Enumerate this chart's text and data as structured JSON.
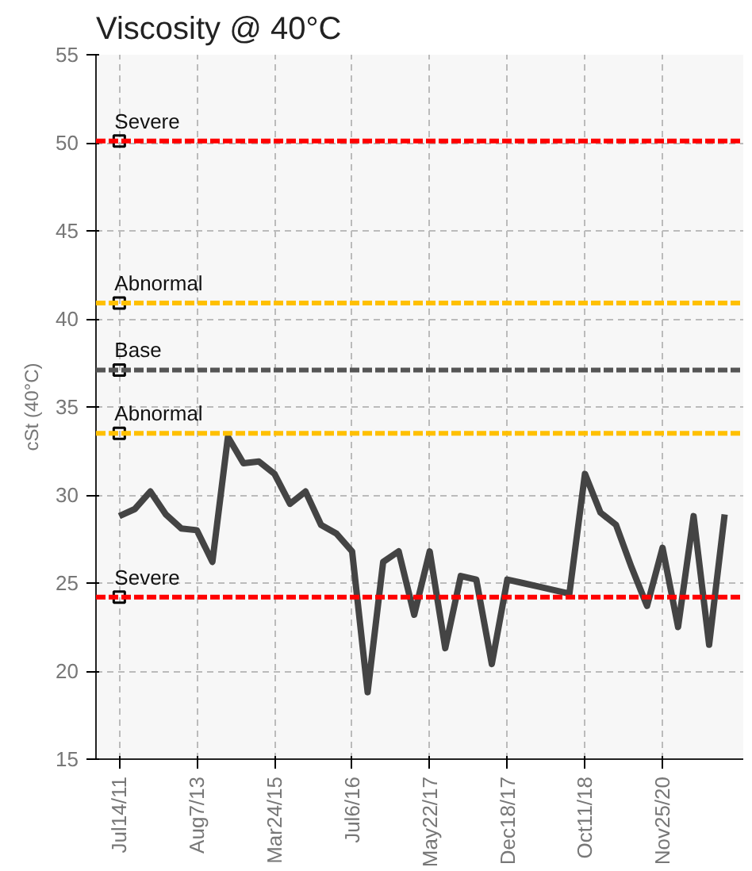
{
  "chart_data": {
    "type": "line",
    "title": "Viscosity @ 40°C",
    "ylabel": "cSt (40°C)",
    "categories": [
      "Jul14/11",
      null,
      null,
      null,
      null,
      "Aug7/13",
      null,
      null,
      null,
      null,
      "Mar24/15",
      null,
      null,
      null,
      null,
      "Jul6/16",
      null,
      null,
      null,
      null,
      "May22/17",
      null,
      null,
      null,
      null,
      "Dec18/17",
      null,
      null,
      null,
      null,
      "Oct11/18",
      null,
      null,
      null,
      null,
      "Nov25/20",
      null,
      null,
      null,
      null
    ],
    "series": [
      {
        "color": "#444444",
        "values": [
          28.8,
          29.2,
          30.2,
          28.9,
          28.1,
          28.0,
          26.2,
          33.3,
          31.8,
          31.9,
          31.2,
          29.5,
          30.2,
          28.3,
          27.8,
          26.8,
          18.8,
          26.2,
          26.8,
          23.2,
          26.8,
          21.3,
          25.4,
          25.2,
          20.4,
          25.2,
          25.0,
          24.8,
          24.6,
          24.4,
          31.2,
          29.0,
          28.3,
          25.9,
          23.7,
          27.0,
          22.5,
          28.8,
          21.5,
          28.9
        ]
      },
      {
        "type": "scatter",
        "marker": "square",
        "color": "#000000",
        "x": [
          "Jul14/11",
          "Jul14/11",
          "Jul14/11",
          "Jul14/11",
          "Jul14/11"
        ],
        "values": [
          50.1,
          40.9,
          37.1,
          33.5,
          24.2
        ]
      }
    ],
    "ylim": [
      15,
      55
    ],
    "yticks": [
      15,
      20,
      25,
      30,
      35,
      40,
      45,
      50,
      55
    ],
    "grid": true,
    "marker": "none",
    "line_style": "solid",
    "ref_lines": [
      {
        "axis": "y",
        "value": 50.1,
        "label": "Severe",
        "color": "#ff0000",
        "line_style": "dashed"
      },
      {
        "axis": "y",
        "value": 40.9,
        "label": "Abnormal",
        "color": "#ffc000",
        "line_style": "dashed"
      },
      {
        "axis": "y",
        "value": 37.1,
        "label": "Base",
        "color": "#555555",
        "line_style": "dashed"
      },
      {
        "axis": "y",
        "value": 33.5,
        "label": "Abnormal",
        "color": "#ffc000",
        "line_style": "dashed"
      },
      {
        "axis": "y",
        "value": 24.2,
        "label": "Severe",
        "color": "#ff0000",
        "line_style": "dashed"
      }
    ]
  }
}
